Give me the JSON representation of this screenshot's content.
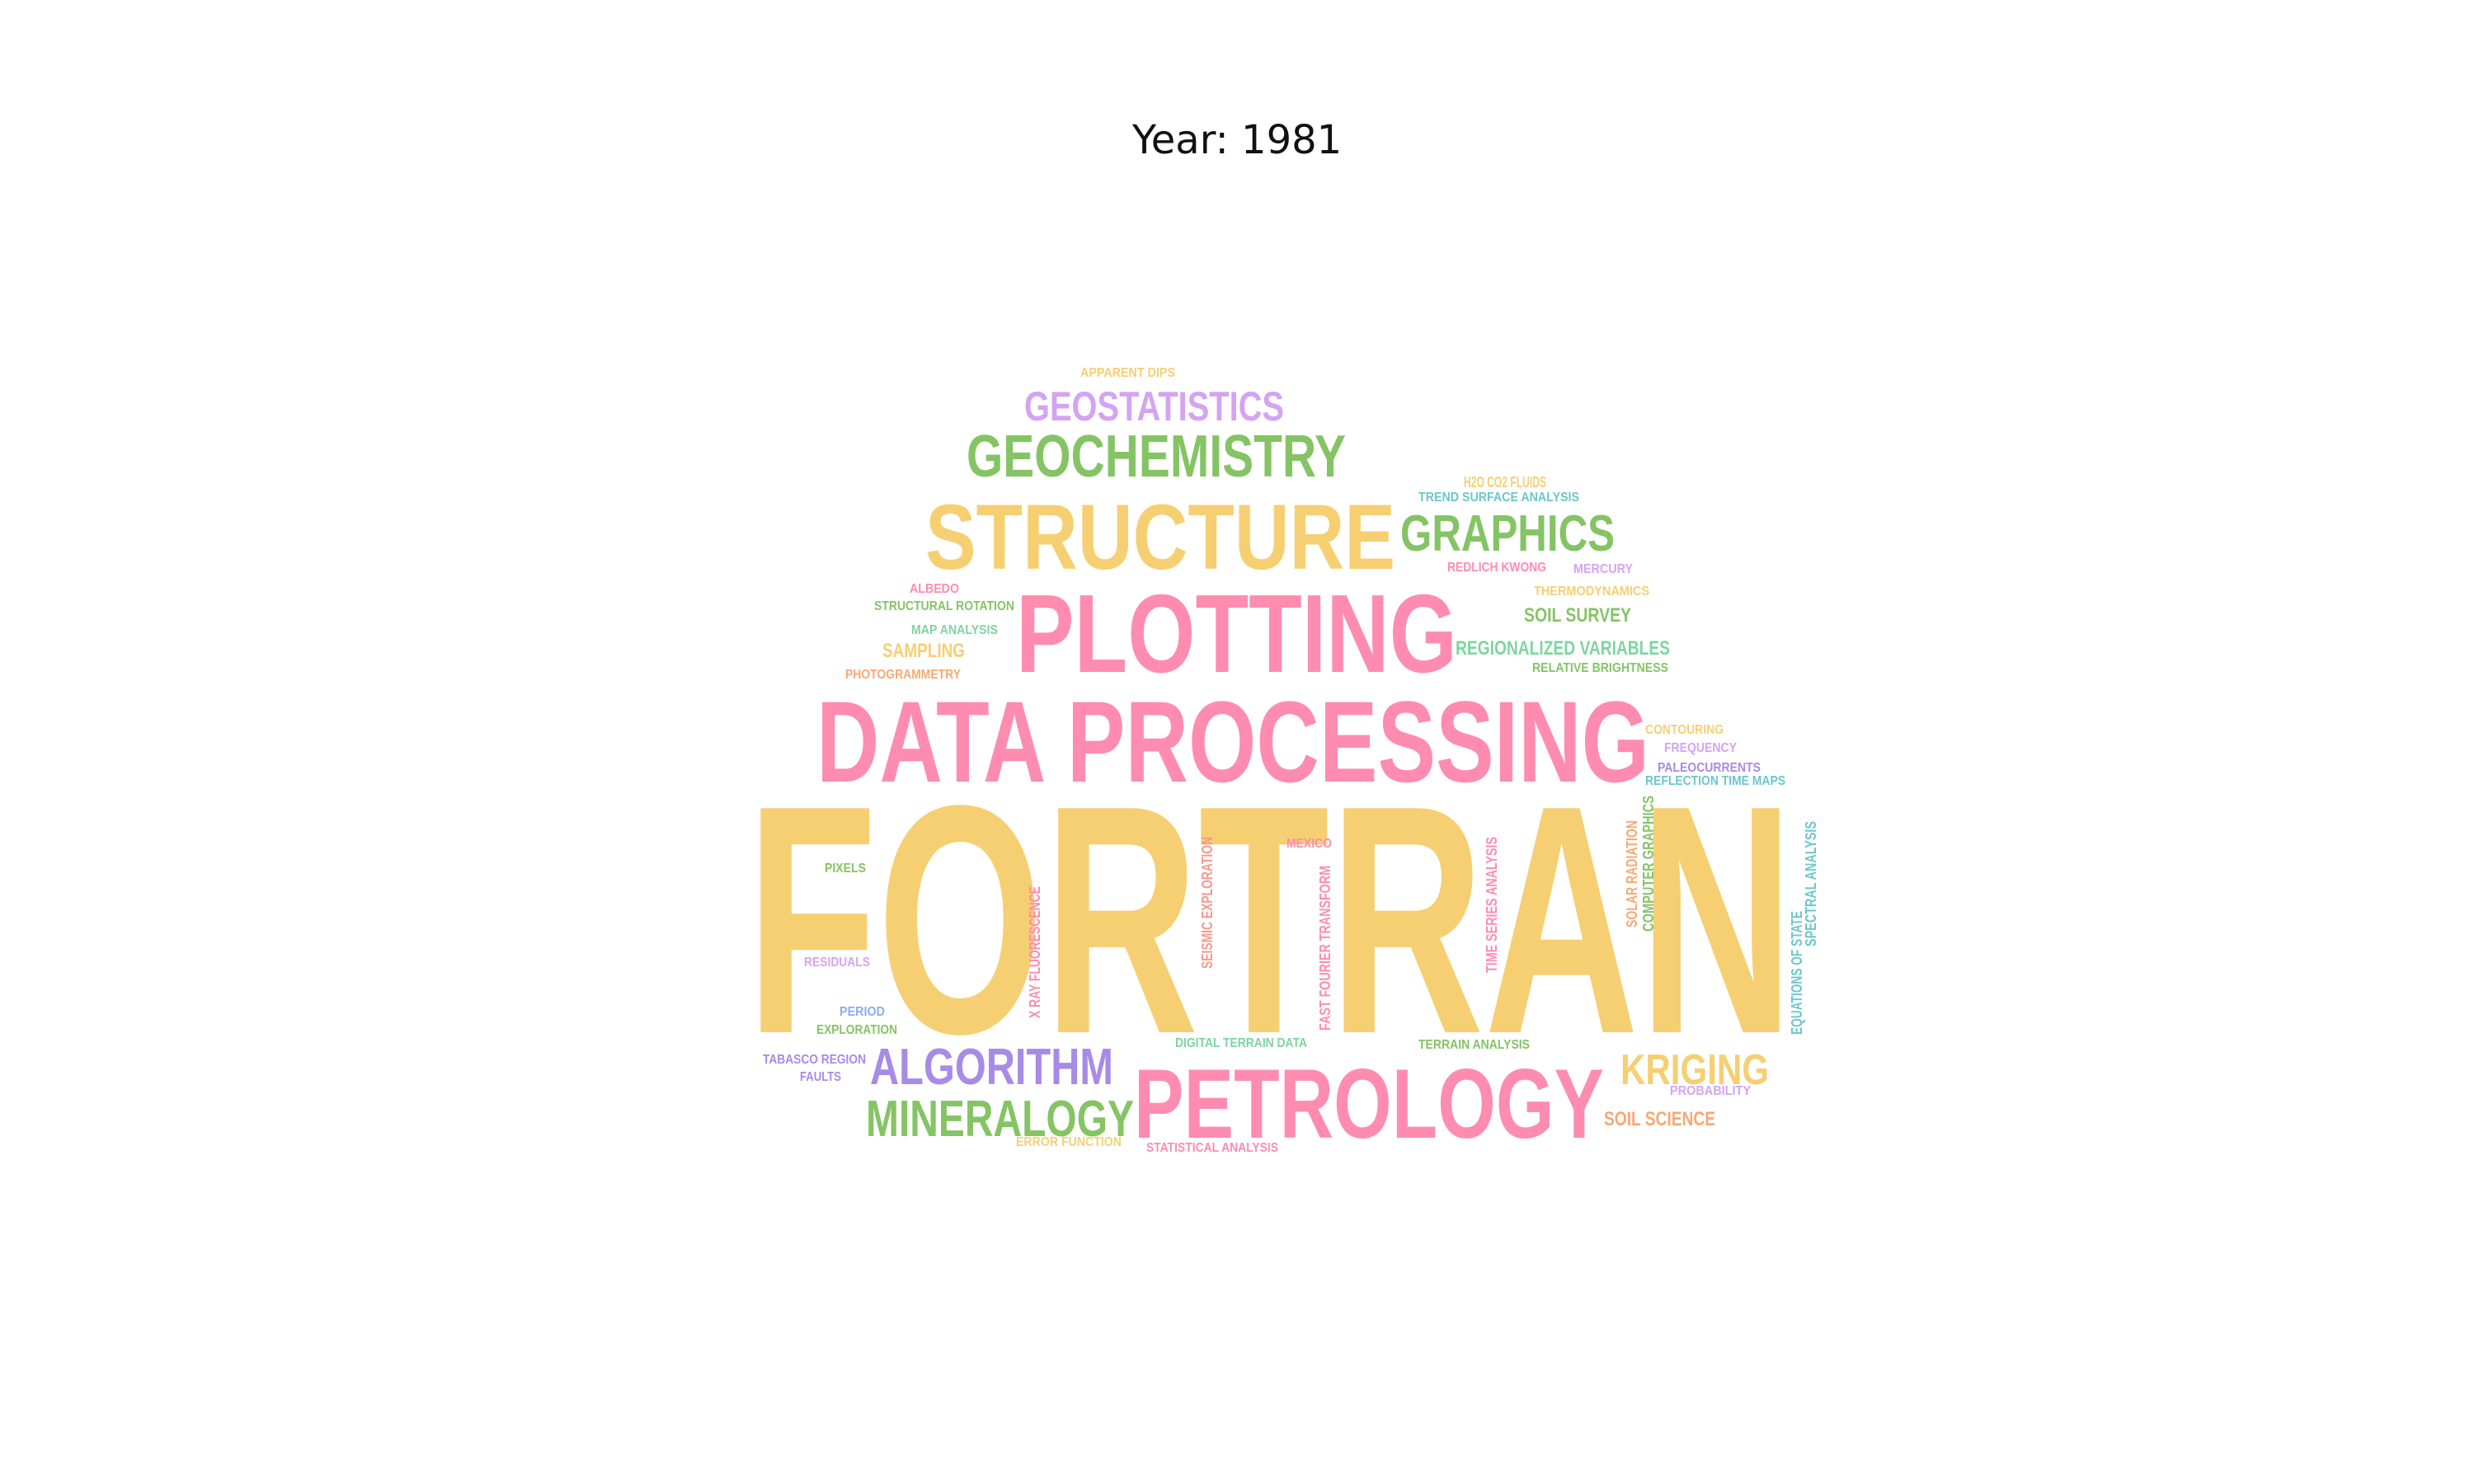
{
  "title": "Year: 1981",
  "palette": {
    "yellow": "#f6cf72",
    "pink": "#fe8cb0",
    "green": "#85c465",
    "lavender": "#d4a4f2",
    "purple": "#a78be6",
    "orange": "#f8a872",
    "teal": "#6cc6cc",
    "mint": "#7fd4a0",
    "salmon": "#f59a8e",
    "blue": "#8eaaf4"
  },
  "words": [
    {
      "id": "fortran",
      "text": "FORTRAN",
      "color": "yellow"
    },
    {
      "id": "data-processing",
      "text": "DATA PROCESSING",
      "color": "pink"
    },
    {
      "id": "plotting",
      "text": "PLOTTING",
      "color": "pink"
    },
    {
      "id": "petrology",
      "text": "PETROLOGY",
      "color": "pink"
    },
    {
      "id": "structure",
      "text": "STRUCTURE",
      "color": "yellow"
    },
    {
      "id": "geochemistry",
      "text": "GEOCHEMISTRY",
      "color": "green"
    },
    {
      "id": "geostatistics",
      "text": "GEOSTATISTICS",
      "color": "lavender"
    },
    {
      "id": "graphics",
      "text": "GRAPHICS",
      "color": "green"
    },
    {
      "id": "algorithm",
      "text": "ALGORITHM",
      "color": "purple"
    },
    {
      "id": "mineralogy",
      "text": "MINERALOGY",
      "color": "green"
    },
    {
      "id": "kriging",
      "text": "KRIGING",
      "color": "yellow"
    },
    {
      "id": "apparent-dips",
      "text": "APPARENT DIPS",
      "color": "yellow"
    },
    {
      "id": "h2o-co2-fluids",
      "text": "H2O CO2 FLUIDS",
      "color": "yellow"
    },
    {
      "id": "trend-surface-analysis",
      "text": "TREND SURFACE ANALYSIS",
      "color": "teal"
    },
    {
      "id": "redlich-kwong",
      "text": "REDLICH KWONG",
      "color": "pink"
    },
    {
      "id": "mercury",
      "text": "MERCURY",
      "color": "lavender"
    },
    {
      "id": "albedo",
      "text": "ALBEDO",
      "color": "pink"
    },
    {
      "id": "thermodynamics",
      "text": "THERMODYNAMICS",
      "color": "yellow"
    },
    {
      "id": "structural-rotation",
      "text": "STRUCTURAL ROTATION",
      "color": "green"
    },
    {
      "id": "soil-survey",
      "text": "SOIL SURVEY",
      "color": "green"
    },
    {
      "id": "map-analysis",
      "text": "MAP ANALYSIS",
      "color": "mint"
    },
    {
      "id": "sampling",
      "text": "SAMPLING",
      "color": "yellow"
    },
    {
      "id": "regionalized-variables",
      "text": "REGIONALIZED VARIABLES",
      "color": "mint"
    },
    {
      "id": "photogrammetry",
      "text": "PHOTOGRAMMETRY",
      "color": "orange"
    },
    {
      "id": "relative-brightness",
      "text": "RELATIVE BRIGHTNESS",
      "color": "green"
    },
    {
      "id": "contouring",
      "text": "CONTOURING",
      "color": "yellow"
    },
    {
      "id": "frequency",
      "text": "FREQUENCY",
      "color": "lavender"
    },
    {
      "id": "paleocurrents",
      "text": "PALEOCURRENTS",
      "color": "purple"
    },
    {
      "id": "reflection-time-maps",
      "text": "REFLECTION TIME MAPS",
      "color": "teal"
    },
    {
      "id": "mexico",
      "text": "MEXICO",
      "color": "pink"
    },
    {
      "id": "pixels",
      "text": "PIXELS",
      "color": "green"
    },
    {
      "id": "residuals",
      "text": "RESIDUALS",
      "color": "lavender"
    },
    {
      "id": "period",
      "text": "PERIOD",
      "color": "blue"
    },
    {
      "id": "exploration",
      "text": "EXPLORATION",
      "color": "green"
    },
    {
      "id": "tabasco-region",
      "text": "TABASCO REGION",
      "color": "purple"
    },
    {
      "id": "faults",
      "text": "FAULTS",
      "color": "purple"
    },
    {
      "id": "digital-terrain-data",
      "text": "DIGITAL TERRAIN DATA",
      "color": "mint"
    },
    {
      "id": "terrain-analysis",
      "text": "TERRAIN ANALYSIS",
      "color": "green"
    },
    {
      "id": "probability",
      "text": "PROBABILITY",
      "color": "lavender"
    },
    {
      "id": "soil-science",
      "text": "SOIL SCIENCE",
      "color": "orange"
    },
    {
      "id": "error-function",
      "text": "ERROR FUNCTION",
      "color": "yellow"
    },
    {
      "id": "statistical-analysis",
      "text": "STATISTICAL ANALYSIS",
      "color": "pink"
    },
    {
      "id": "x-ray-fluorescence",
      "text": "X RAY FLUORESCENCE",
      "color": "pink"
    },
    {
      "id": "seismic-exploration",
      "text": "SEISMIC EXPLORATION",
      "color": "salmon"
    },
    {
      "id": "fast-fourier-transform",
      "text": "FAST FOURIER TRANSFORM",
      "color": "pink"
    },
    {
      "id": "time-series-analysis",
      "text": "TIME SERIES ANALYSIS",
      "color": "pink"
    },
    {
      "id": "solar-radiation",
      "text": "SOLAR RADIATION",
      "color": "orange"
    },
    {
      "id": "computer-graphics",
      "text": "COMPUTER GRAPHICS",
      "color": "green"
    },
    {
      "id": "equations-of-state",
      "text": "EQUATIONS OF STATE",
      "color": "teal"
    },
    {
      "id": "spectral-analysis",
      "text": "SPECTRAL ANALYSIS",
      "color": "teal"
    }
  ]
}
